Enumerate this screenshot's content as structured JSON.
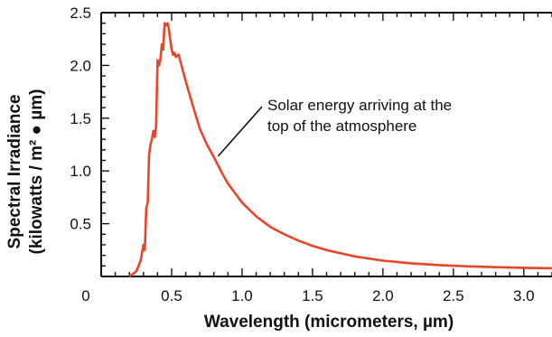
{
  "chart_data": {
    "type": "line",
    "title": "",
    "xlabel": "Wavelength  (micrometers, µm)",
    "ylabel_line1": "Spectral Irradiance",
    "ylabel_line2": "(kilowatts / m² ● µm)",
    "xlim": [
      0,
      3.2
    ],
    "ylim": [
      0,
      2.5
    ],
    "grid": false,
    "x_ticks": [
      {
        "value": 0,
        "label": "0"
      },
      {
        "value": 0.5,
        "label": "0.5"
      },
      {
        "value": 1.0,
        "label": "1.0"
      },
      {
        "value": 1.5,
        "label": "1.5"
      },
      {
        "value": 2.0,
        "label": "2.0"
      },
      {
        "value": 2.5,
        "label": "2.5"
      },
      {
        "value": 3.0,
        "label": "3.0"
      }
    ],
    "y_ticks": [
      {
        "value": 0.5,
        "label": "0.5"
      },
      {
        "value": 1.0,
        "label": "1.0"
      },
      {
        "value": 1.5,
        "label": "1.5"
      },
      {
        "value": 2.0,
        "label": "2.0"
      },
      {
        "value": 2.5,
        "label": "2.5"
      }
    ],
    "series": [
      {
        "color": "#e8462a",
        "x": [
          0.2,
          0.25,
          0.28,
          0.3,
          0.31,
          0.32,
          0.33,
          0.34,
          0.35,
          0.36,
          0.37,
          0.38,
          0.39,
          0.4,
          0.41,
          0.42,
          0.43,
          0.44,
          0.45,
          0.46,
          0.47,
          0.48,
          0.49,
          0.5,
          0.51,
          0.52,
          0.53,
          0.55,
          0.58,
          0.6,
          0.65,
          0.7,
          0.75,
          0.8,
          0.85,
          0.9,
          1.0,
          1.1,
          1.2,
          1.3,
          1.4,
          1.5,
          1.6,
          1.8,
          2.0,
          2.2,
          2.4,
          2.6,
          2.8,
          3.0,
          3.2
        ],
        "y": [
          0.0,
          0.05,
          0.15,
          0.3,
          0.25,
          0.65,
          0.7,
          1.15,
          1.25,
          1.3,
          1.38,
          1.32,
          1.42,
          2.05,
          2.0,
          2.05,
          2.2,
          2.15,
          2.4,
          2.38,
          2.4,
          2.35,
          2.25,
          2.15,
          2.1,
          2.12,
          2.08,
          2.1,
          1.95,
          1.85,
          1.62,
          1.4,
          1.25,
          1.13,
          1.0,
          0.88,
          0.7,
          0.57,
          0.47,
          0.4,
          0.34,
          0.29,
          0.25,
          0.19,
          0.15,
          0.125,
          0.108,
          0.096,
          0.088,
          0.082,
          0.078
        ]
      }
    ],
    "annotation": {
      "line1": "Solar energy arriving at the",
      "line2": "top of the atmosphere",
      "x": 0.83,
      "y": 1.14
    }
  }
}
